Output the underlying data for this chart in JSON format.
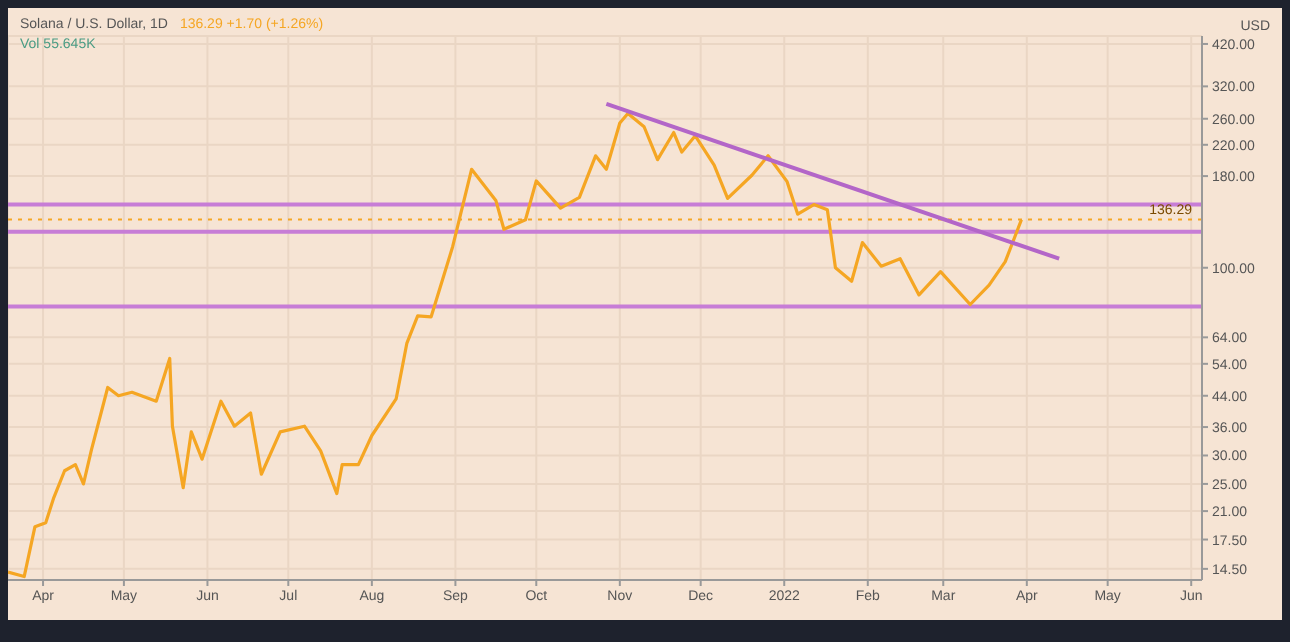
{
  "chart_data": {
    "type": "line",
    "title": "Solana / U.S. Dollar, 1D",
    "subtitle": "136.29 +1.70 (+1.26%)",
    "ylabel": "USD",
    "annotations": [
      "Vol 55.645K"
    ],
    "log": true,
    "grid": true,
    "legend": false,
    "xlim": [
      "2021-03-19",
      "2022-06-05"
    ],
    "xticks": [
      {
        "value": "2021-04-01",
        "label": "Apr"
      },
      {
        "value": "2021-05-01",
        "label": "May"
      },
      {
        "value": "2021-06-01",
        "label": "Jun"
      },
      {
        "value": "2021-07-01",
        "label": "Jul"
      },
      {
        "value": "2021-08-01",
        "label": "Aug"
      },
      {
        "value": "2021-09-01",
        "label": "Sep"
      },
      {
        "value": "2021-10-01",
        "label": "Oct"
      },
      {
        "value": "2021-11-01",
        "label": "Nov"
      },
      {
        "value": "2021-12-01",
        "label": "Dec"
      },
      {
        "value": "2022-01-01",
        "label": "2022"
      },
      {
        "value": "2022-02-01",
        "label": "Feb"
      },
      {
        "value": "2022-03-01",
        "label": "Mar"
      },
      {
        "value": "2022-04-01",
        "label": "Apr"
      },
      {
        "value": "2022-05-01",
        "label": "May"
      },
      {
        "value": "2022-06-01",
        "label": "Jun"
      }
    ],
    "ylim": [
      13.5,
      442
    ],
    "yticks": [
      {
        "value": 14.5,
        "label": "14.50"
      },
      {
        "value": 17.5,
        "label": "17.50"
      },
      {
        "value": 21,
        "label": "21.00"
      },
      {
        "value": 25,
        "label": "25.00"
      },
      {
        "value": 30,
        "label": "30.00"
      },
      {
        "value": 36,
        "label": "36.00"
      },
      {
        "value": 44,
        "label": "44.00"
      },
      {
        "value": 54,
        "label": "54.00"
      },
      {
        "value": 64,
        "label": "64.00"
      },
      {
        "value": 100,
        "label": "100.00"
      },
      {
        "value": 180,
        "label": "180.00"
      },
      {
        "value": 220,
        "label": "220.00"
      },
      {
        "value": 260,
        "label": "260.00"
      },
      {
        "value": 320,
        "label": "320.00"
      },
      {
        "value": 420,
        "label": "420.00"
      }
    ],
    "ref_lines": [
      {
        "axis": "y",
        "value": 150,
        "color": "#c77dd6"
      },
      {
        "axis": "y",
        "value": 126,
        "color": "#c77dd6"
      },
      {
        "axis": "y",
        "value": 78,
        "color": "#c77dd6"
      },
      {
        "axis": "y",
        "value": 136.29,
        "label": "136.29",
        "color": "#f5a623",
        "line_style": "dotted"
      }
    ],
    "series": [
      {
        "color": "#f5a623",
        "x": [
          "2021-03-19",
          "2021-03-25",
          "2021-03-29",
          "2021-04-02",
          "2021-04-05",
          "2021-04-09",
          "2021-04-13",
          "2021-04-16",
          "2021-04-19",
          "2021-04-25",
          "2021-04-29",
          "2021-05-04",
          "2021-05-13",
          "2021-05-18",
          "2021-05-19",
          "2021-05-23",
          "2021-05-26",
          "2021-05-30",
          "2021-06-06",
          "2021-06-11",
          "2021-06-17",
          "2021-06-21",
          "2021-06-28",
          "2021-07-07",
          "2021-07-13",
          "2021-07-19",
          "2021-07-21",
          "2021-07-27",
          "2021-08-01",
          "2021-08-10",
          "2021-08-14",
          "2021-08-18",
          "2021-08-23",
          "2021-08-31",
          "2021-09-07",
          "2021-09-16",
          "2021-09-19",
          "2021-09-27",
          "2021-10-01",
          "2021-10-10",
          "2021-10-17",
          "2021-10-23",
          "2021-10-27",
          "2021-11-01",
          "2021-11-04",
          "2021-11-10",
          "2021-11-15",
          "2021-11-21",
          "2021-11-24",
          "2021-11-29",
          "2021-12-06",
          "2021-12-11",
          "2021-12-20",
          "2021-12-26",
          "2022-01-02",
          "2022-01-06",
          "2022-01-12",
          "2022-01-17",
          "2022-01-20",
          "2022-01-26",
          "2022-01-30",
          "2022-02-06",
          "2022-02-13",
          "2022-02-20",
          "2022-02-28",
          "2022-03-11",
          "2022-03-18",
          "2022-03-24",
          "2022-03-30"
        ],
        "values": [
          14.2,
          13.8,
          19,
          19.5,
          22.9,
          27.2,
          28.3,
          25,
          31.2,
          46.4,
          44,
          45,
          42.5,
          55.9,
          36.2,
          24.4,
          34.9,
          29.3,
          42.5,
          36.2,
          39.4,
          26.6,
          34.9,
          36.2,
          30.9,
          23.5,
          28.3,
          28.3,
          34.1,
          43.1,
          61.7,
          73.4,
          73,
          114.6,
          188,
          154,
          128,
          136,
          174.5,
          146.6,
          157,
          205,
          188,
          253,
          269,
          247,
          200,
          238,
          210,
          233,
          193,
          156,
          181,
          205,
          174,
          141,
          150,
          145,
          100,
          91.7,
          117.5,
          101,
          106,
          84,
          97.5,
          79,
          89.4,
          104,
          136
        ]
      },
      {
        "type": "line",
        "color": "#b366c8",
        "x": [
          "2021-10-27",
          "2022-04-13"
        ],
        "values": [
          286,
          106
        ]
      }
    ]
  }
}
